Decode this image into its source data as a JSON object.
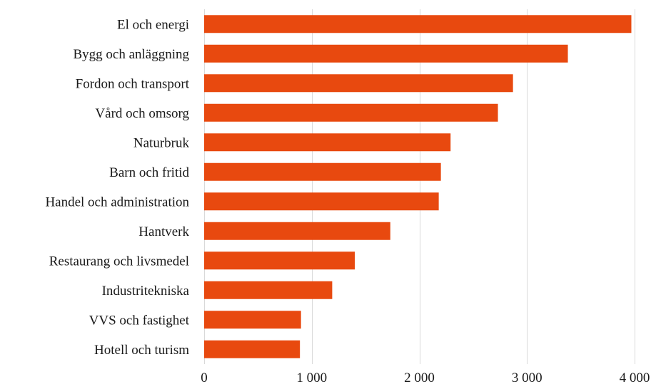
{
  "chart_data": {
    "type": "bar",
    "orientation": "horizontal",
    "categories": [
      "El och energi",
      "Bygg och anläggning",
      "Fordon och transport",
      "Vård och omsorg",
      "Naturbruk",
      "Barn och fritid",
      "Handel och administration",
      "Hantverk",
      "Restaurang och livsmedel",
      "Industritekniska",
      "VVS och fastighet",
      "Hotell och turism"
    ],
    "values": [
      3970,
      3380,
      2870,
      2730,
      2290,
      2200,
      2180,
      1730,
      1400,
      1190,
      900,
      890
    ],
    "title": "",
    "xlabel": "",
    "ylabel": "",
    "xlim": [
      0,
      4000
    ],
    "x_ticks": [
      0,
      1000,
      2000,
      3000,
      4000
    ],
    "x_tick_labels": [
      "0",
      "1 000",
      "2 000",
      "3 000",
      "4 000"
    ],
    "grid": "vertical",
    "legend": "none",
    "bar_color": "#e8490f",
    "gridline_color": "#d9d9d9"
  }
}
